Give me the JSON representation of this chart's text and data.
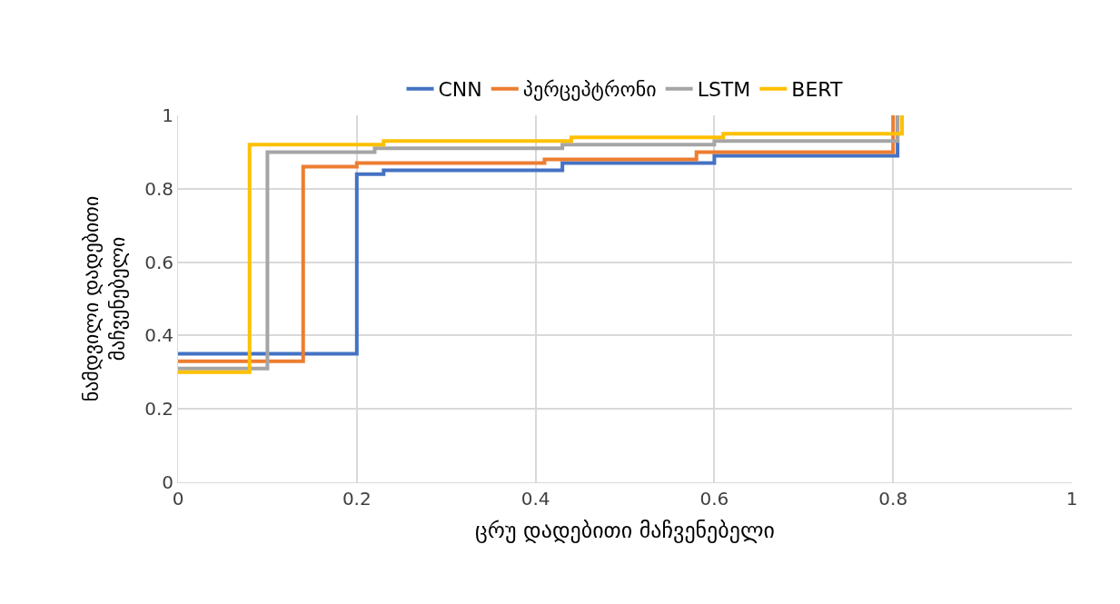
{
  "chart_data": {
    "type": "step",
    "xlabel": "ცრუ დადებითი მაჩვენებელი",
    "ylabel": "ნამდვილი დადებითი მაჩვენებელი",
    "series": [
      {
        "name": "CNN",
        "color": "#4472c4",
        "x": [
          0,
          0.2,
          0.23,
          0.43,
          0.6,
          0.8,
          0.805
        ],
        "values": [
          0.35,
          0.84,
          0.85,
          0.87,
          0.89,
          0.89,
          1
        ]
      },
      {
        "name": "პერცეპტრონი",
        "color": "#ed7d31",
        "x": [
          0,
          0.14,
          0.2,
          0.41,
          0.58,
          0.8
        ],
        "values": [
          0.33,
          0.86,
          0.87,
          0.88,
          0.9,
          1
        ]
      },
      {
        "name": "LSTM",
        "color": "#a5a5a5",
        "x": [
          0,
          0.1,
          0.22,
          0.43,
          0.6,
          0.805
        ],
        "values": [
          0.31,
          0.9,
          0.91,
          0.92,
          0.93,
          1
        ]
      },
      {
        "name": "BERT",
        "color": "#ffc000",
        "x": [
          0,
          0.08,
          0.23,
          0.44,
          0.61,
          0.81
        ],
        "values": [
          0.3,
          0.92,
          0.93,
          0.94,
          0.95,
          1
        ]
      }
    ],
    "xlim": [
      0,
      1
    ],
    "xticks": [
      0,
      0.2,
      0.4,
      0.6,
      0.8,
      1
    ],
    "ylim": [
      0,
      1
    ],
    "yticks": [
      0,
      0.2,
      0.4,
      0.6,
      0.8,
      1
    ],
    "grid": true,
    "legend": "top"
  }
}
